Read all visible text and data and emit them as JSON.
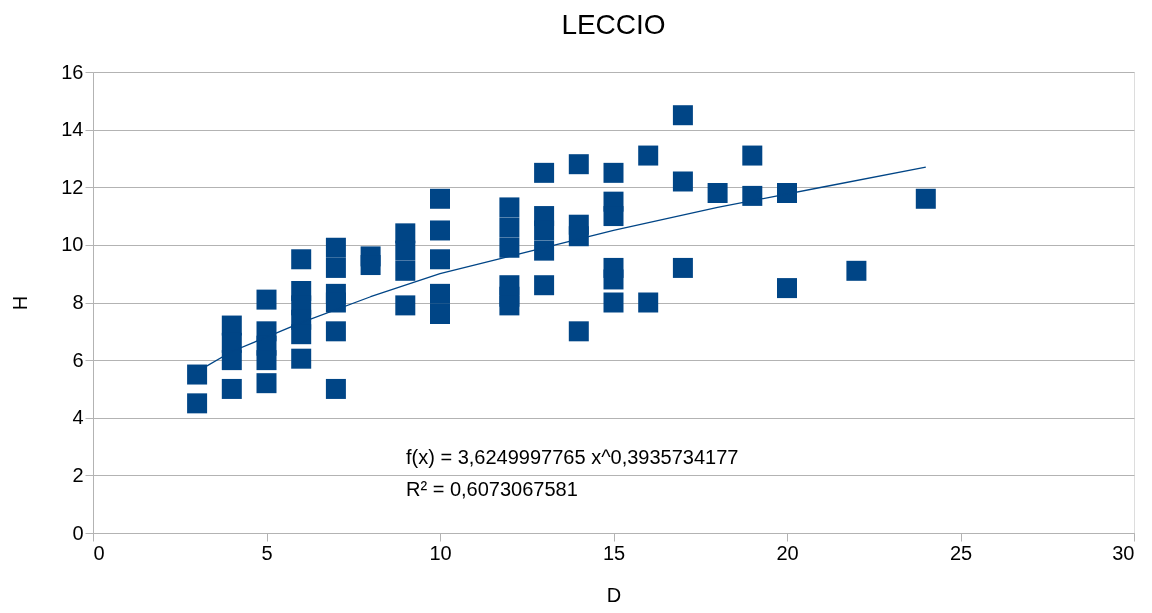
{
  "chart_data": {
    "type": "scatter",
    "title": "LECCIO",
    "xlabel": "D",
    "ylabel": "H",
    "xlim": [
      0,
      30
    ],
    "xticks": [
      0,
      5,
      10,
      15,
      20,
      25,
      30
    ],
    "ylim": [
      0,
      16
    ],
    "yticks": [
      0,
      2,
      4,
      6,
      8,
      10,
      12,
      14,
      16
    ],
    "grid": "y",
    "annotations": [
      "f(x) = 3,6249997765 x^0,3935734177",
      "R² = 0,6073067581"
    ],
    "series": [
      {
        "type": "scatter",
        "marker": "square",
        "color": "#004586",
        "x": [
          3,
          3,
          4,
          4,
          4,
          4,
          5,
          5,
          5,
          5,
          5,
          6,
          6,
          6,
          6,
          6,
          6,
          7,
          7,
          7,
          7,
          7,
          7,
          8,
          8,
          9,
          9,
          9,
          9,
          10,
          10,
          10,
          10,
          10,
          12,
          12,
          12,
          12,
          12,
          12,
          13,
          13,
          13,
          13,
          13,
          14,
          14,
          14,
          14,
          15,
          15,
          15,
          15,
          15,
          15,
          16,
          16,
          17,
          17,
          17,
          18,
          19,
          19,
          20,
          20,
          22,
          24
        ],
        "values": [
          5.5,
          4.5,
          7.2,
          6.6,
          6.0,
          5.0,
          8.1,
          7.0,
          6.5,
          6.0,
          5.2,
          9.5,
          8.4,
          7.9,
          7.4,
          6.9,
          6.05,
          9.9,
          9.2,
          8.3,
          8.0,
          7.0,
          5.0,
          9.6,
          9.3,
          10.4,
          9.8,
          9.1,
          7.9,
          11.6,
          10.5,
          9.5,
          8.3,
          7.6,
          11.3,
          10.6,
          9.9,
          8.6,
          8.2,
          7.9,
          12.5,
          11.0,
          10.5,
          9.8,
          8.6,
          12.8,
          10.7,
          10.3,
          7.0,
          12.5,
          11.5,
          11.0,
          9.2,
          8.8,
          8.0,
          13.1,
          8.0,
          14.5,
          12.2,
          9.2,
          11.8,
          13.1,
          11.7,
          11.8,
          8.5,
          9.1,
          11.6
        ]
      },
      {
        "type": "line",
        "line_style": "solid",
        "color": "#004586",
        "x": [
          3,
          4,
          5,
          6,
          8,
          10,
          12,
          15,
          18,
          21,
          24
        ],
        "values": [
          5.6,
          6.3,
          6.8,
          7.3,
          8.2,
          9.0,
          9.6,
          10.5,
          11.3,
          12.0,
          12.7
        ]
      }
    ]
  }
}
